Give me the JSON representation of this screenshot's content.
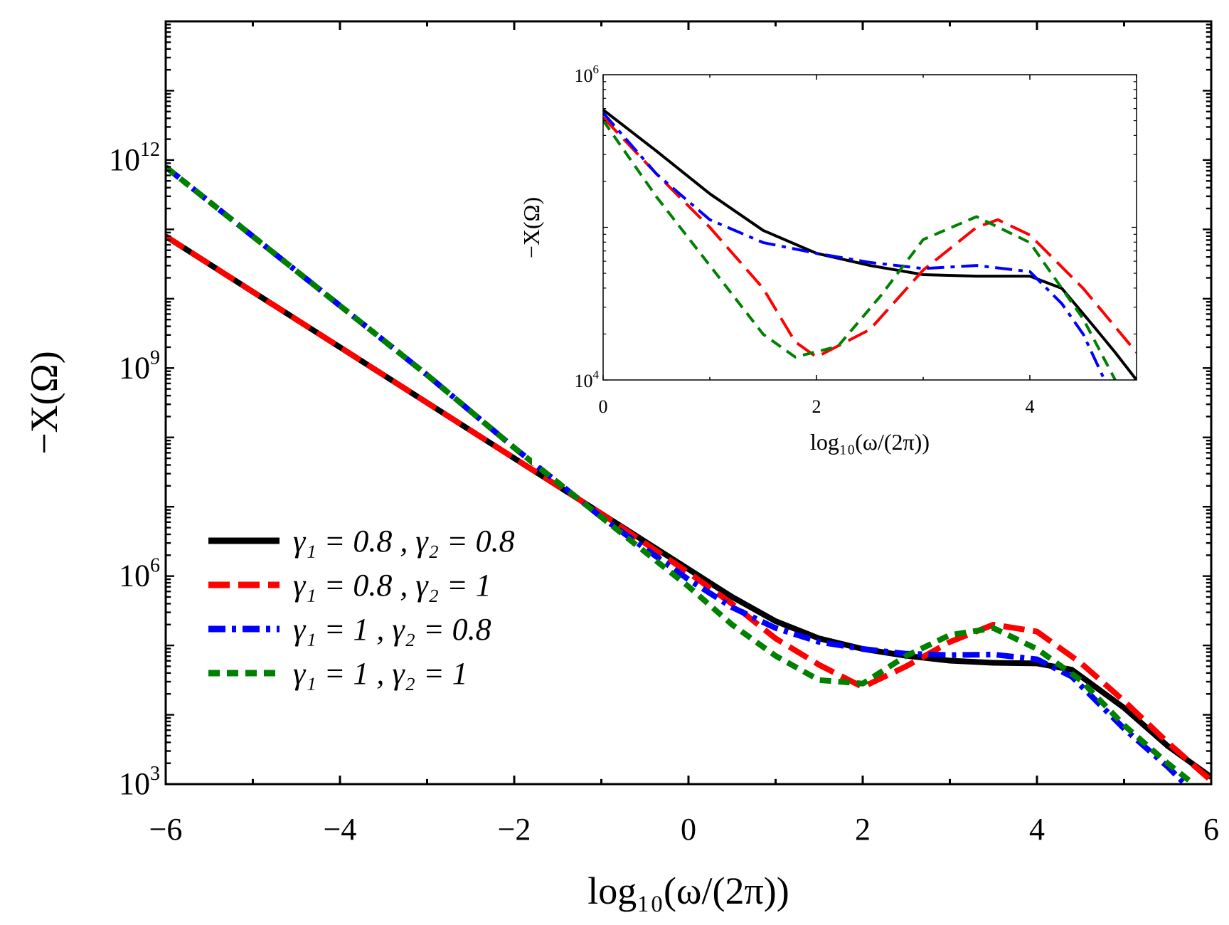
{
  "chart_data": [
    {
      "id": "main",
      "type": "line",
      "title": "",
      "xlabel": "log₁₀(ω/(2π))",
      "ylabel": "−X(Ω)",
      "xlim": [
        -6,
        6
      ],
      "ylim_log10": [
        3,
        14
      ],
      "yscale": "log",
      "xticks": [
        -6,
        -4,
        -2,
        0,
        2,
        4,
        6
      ],
      "xtick_labels": [
        "−6",
        "−4",
        "−2",
        "0",
        "2",
        "4",
        "6"
      ],
      "yticks_log10": [
        3,
        6,
        9,
        12
      ],
      "ytick_labels": [
        {
          "base": "10",
          "exp": "3"
        },
        {
          "base": "10",
          "exp": "6"
        },
        {
          "base": "10",
          "exp": "9"
        },
        {
          "base": "10",
          "exp": "12"
        }
      ],
      "grid": false,
      "legend": "lower-left",
      "series": [
        {
          "key": "s1",
          "label": "γ₁ = 0.8    , γ₂ = 0.8",
          "color": "#000000",
          "style": "solid",
          "points": [
            [
              -6,
              10.9
            ],
            [
              -5,
              10.1
            ],
            [
              -4,
              9.3
            ],
            [
              -3,
              8.5
            ],
            [
              -2,
              7.7
            ],
            [
              -1,
              6.9
            ],
            [
              0,
              6.1
            ],
            [
              0.5,
              5.7
            ],
            [
              1,
              5.35
            ],
            [
              1.5,
              5.1
            ],
            [
              2,
              4.95
            ],
            [
              2.5,
              4.85
            ],
            [
              3,
              4.78
            ],
            [
              3.5,
              4.75
            ],
            [
              4,
              4.74
            ],
            [
              4.4,
              4.65
            ],
            [
              5,
              4.1
            ],
            [
              5.5,
              3.55
            ],
            [
              6,
              3.1
            ]
          ]
        },
        {
          "key": "s2",
          "label": "γ₁ = 0.8    , γ₂ = 1",
          "color": "#ff0000",
          "style": "dash",
          "points": [
            [
              -6,
              10.9
            ],
            [
              -5,
              10.1
            ],
            [
              -4,
              9.3
            ],
            [
              -3,
              8.5
            ],
            [
              -2,
              7.7
            ],
            [
              -1,
              6.9
            ],
            [
              0,
              6.05
            ],
            [
              0.5,
              5.6
            ],
            [
              1,
              5.1
            ],
            [
              1.5,
              4.72
            ],
            [
              2,
              4.4
            ],
            [
              2.5,
              4.7
            ],
            [
              3,
              5.05
            ],
            [
              3.5,
              5.3
            ],
            [
              4,
              5.2
            ],
            [
              4.5,
              4.75
            ],
            [
              5,
              4.2
            ],
            [
              5.5,
              3.6
            ],
            [
              6,
              3.05
            ]
          ]
        },
        {
          "key": "s3",
          "label": "γ₁ = 1       , γ₂ = 0.8",
          "color": "#0000ff",
          "style": "dashdot",
          "points": [
            [
              -6,
              11.9
            ],
            [
              -5,
              10.9
            ],
            [
              -4,
              9.9
            ],
            [
              -3,
              8.9
            ],
            [
              -2,
              7.85
            ],
            [
              -1,
              6.85
            ],
            [
              0,
              5.95
            ],
            [
              0.5,
              5.55
            ],
            [
              1,
              5.25
            ],
            [
              1.5,
              5.05
            ],
            [
              2,
              4.95
            ],
            [
              2.5,
              4.88
            ],
            [
              3,
              4.86
            ],
            [
              3.5,
              4.87
            ],
            [
              4,
              4.8
            ],
            [
              4.4,
              4.55
            ],
            [
              5,
              3.8
            ],
            [
              5.5,
              3.25
            ],
            [
              5.7,
              3.0
            ]
          ]
        },
        {
          "key": "s4",
          "label": "γ₁ = 1       , γ₂ = 1",
          "color": "#008000",
          "style": "shortdash",
          "points": [
            [
              -6,
              11.9
            ],
            [
              -5,
              10.9
            ],
            [
              -4,
              9.9
            ],
            [
              -3,
              8.9
            ],
            [
              -2,
              7.85
            ],
            [
              -1,
              6.85
            ],
            [
              0,
              5.85
            ],
            [
              0.5,
              5.3
            ],
            [
              1,
              4.85
            ],
            [
              1.5,
              4.5
            ],
            [
              2,
              4.45
            ],
            [
              2.5,
              4.85
            ],
            [
              3,
              5.15
            ],
            [
              3.5,
              5.25
            ],
            [
              4,
              4.95
            ],
            [
              4.5,
              4.5
            ],
            [
              5,
              3.85
            ],
            [
              5.5,
              3.3
            ],
            [
              5.8,
              3.0
            ]
          ]
        }
      ]
    },
    {
      "id": "inset",
      "type": "line",
      "title": "",
      "xlabel": "log₁₀(ω/(2π))",
      "ylabel": "−X(Ω)",
      "xlim": [
        0,
        5
      ],
      "ylim_log10": [
        4,
        6
      ],
      "yscale": "log",
      "xticks": [
        0,
        2,
        4
      ],
      "xtick_labels": [
        "0",
        "2",
        "4"
      ],
      "yticks_log10": [
        4,
        6
      ],
      "ytick_labels": [
        {
          "base": "10",
          "exp": "4"
        },
        {
          "base": "10",
          "exp": "6"
        }
      ],
      "grid": false,
      "legend": "none",
      "series": [
        {
          "key": "s1",
          "color": "#000000",
          "style": "solid",
          "points": [
            [
              0,
              5.77
            ],
            [
              0.5,
              5.5
            ],
            [
              1,
              5.22
            ],
            [
              1.5,
              4.98
            ],
            [
              2,
              4.83
            ],
            [
              2.5,
              4.75
            ],
            [
              3,
              4.69
            ],
            [
              3.5,
              4.68
            ],
            [
              4,
              4.68
            ],
            [
              4.3,
              4.6
            ],
            [
              4.6,
              4.35
            ],
            [
              4.8,
              4.18
            ],
            [
              5,
              4.0
            ]
          ]
        },
        {
          "key": "s2",
          "color": "#ff0000",
          "style": "dash",
          "points": [
            [
              0,
              5.72
            ],
            [
              0.5,
              5.35
            ],
            [
              1,
              5.0
            ],
            [
              1.5,
              4.6
            ],
            [
              1.8,
              4.25
            ],
            [
              2,
              4.15
            ],
            [
              2.5,
              4.33
            ],
            [
              3,
              4.72
            ],
            [
              3.5,
              5.0
            ],
            [
              3.7,
              5.05
            ],
            [
              4,
              4.95
            ],
            [
              4.5,
              4.6
            ],
            [
              5,
              4.18
            ]
          ]
        },
        {
          "key": "s3",
          "color": "#0000ff",
          "style": "dashdot",
          "points": [
            [
              0,
              5.75
            ],
            [
              0.5,
              5.35
            ],
            [
              1,
              5.05
            ],
            [
              1.5,
              4.9
            ],
            [
              2,
              4.83
            ],
            [
              2.5,
              4.77
            ],
            [
              3,
              4.73
            ],
            [
              3.5,
              4.75
            ],
            [
              4,
              4.71
            ],
            [
              4.3,
              4.5
            ],
            [
              4.5,
              4.3
            ],
            [
              4.7,
              4.0
            ]
          ]
        },
        {
          "key": "s4",
          "color": "#008000",
          "style": "shortdash",
          "points": [
            [
              0,
              5.7
            ],
            [
              0.5,
              5.2
            ],
            [
              1,
              4.75
            ],
            [
              1.5,
              4.3
            ],
            [
              1.8,
              4.15
            ],
            [
              2.2,
              4.22
            ],
            [
              2.6,
              4.55
            ],
            [
              3,
              4.92
            ],
            [
              3.5,
              5.07
            ],
            [
              4,
              4.9
            ],
            [
              4.5,
              4.4
            ],
            [
              4.8,
              4.0
            ]
          ]
        }
      ]
    }
  ]
}
